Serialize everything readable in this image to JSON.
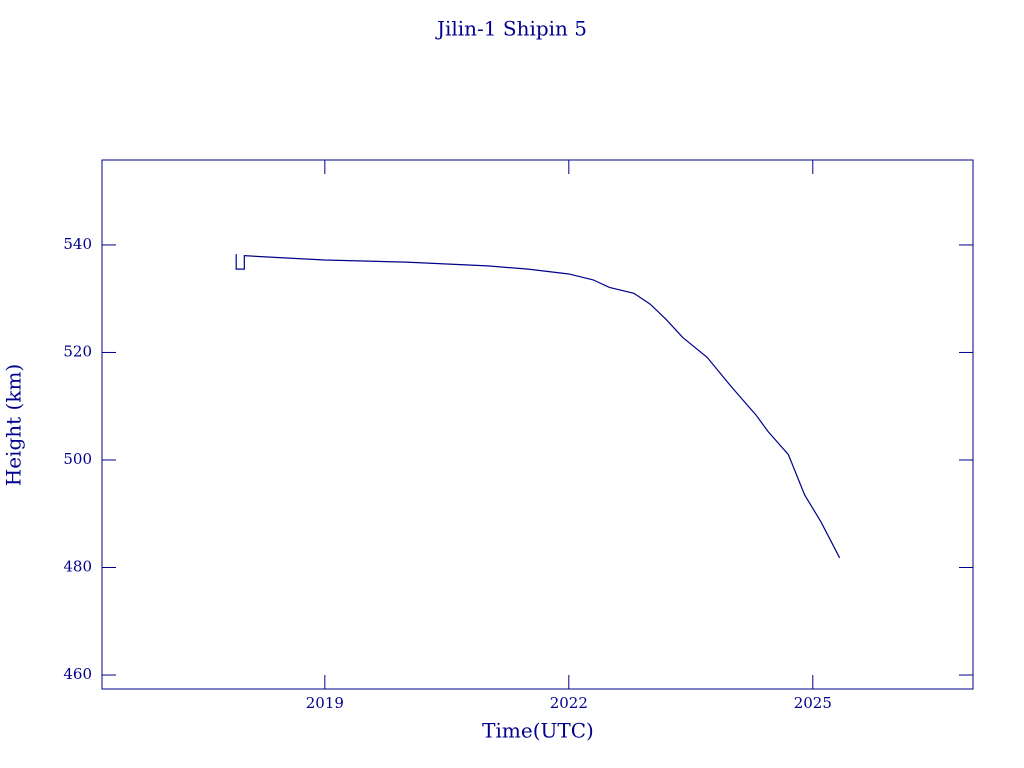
{
  "chart_data": {
    "type": "line",
    "title": "Jilin-1 Shipin 5",
    "x_label": "Time(UTC)",
    "y_label": "Height (km)",
    "color": "#00008b",
    "x": [
      2017.91,
      2017.91,
      2018.01,
      2018.01,
      2018.5,
      2019,
      2020,
      2021,
      2021.5,
      2022,
      2022.3,
      2022.5,
      2022.8,
      2023.0,
      2023.2,
      2023.4,
      2023.7,
      2024.0,
      2024.3,
      2024.45,
      2024.7,
      2024.9,
      2025.1,
      2025.33
    ],
    "values": [
      538.3,
      535.5,
      535.5,
      538.0,
      537.6,
      537.2,
      536.8,
      536.1,
      535.5,
      534.6,
      533.5,
      532.1,
      531.0,
      529.0,
      526.1,
      522.8,
      519.1,
      513.6,
      508.4,
      505.3,
      501.0,
      493.5,
      488.5,
      481.8
    ],
    "xlim": [
      2016.26,
      2026.97
    ],
    "xticks": [
      2019,
      2022,
      2025
    ],
    "ylim": [
      457.4,
      555.8
    ],
    "yticks": [
      460,
      480,
      500,
      520,
      540
    ]
  }
}
